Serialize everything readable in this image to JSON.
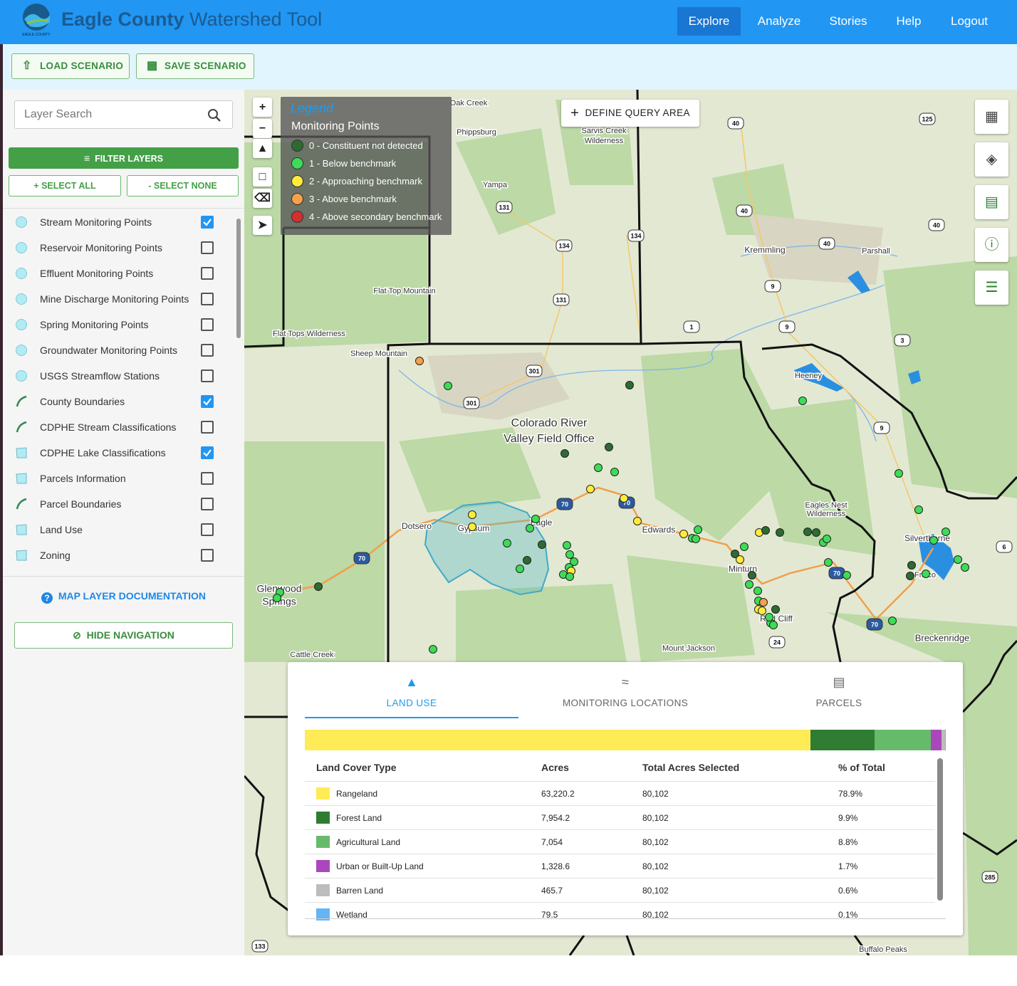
{
  "header": {
    "title_bold": "Eagle County",
    "title_rest": "Watershed Tool",
    "logo_text": "EAGLE COUNTY",
    "nav": [
      "Explore",
      "Analyze",
      "Stories",
      "Help",
      "Logout"
    ],
    "active_nav": 0
  },
  "toolbar": {
    "buttons": [
      "LOAD SCENARIO",
      "SAVE SCENARIO"
    ]
  },
  "sidebar": {
    "search_placeholder": "Layer Search",
    "filter_button": "FILTER LAYERS",
    "select_all": "+ SELECT ALL",
    "select_none": "- SELECT NONE",
    "layers": [
      {
        "name": "Stream Monitoring Points",
        "icon": "point",
        "checked": true
      },
      {
        "name": "Reservoir Monitoring Points",
        "icon": "point",
        "checked": false
      },
      {
        "name": "Effluent Monitoring Points",
        "icon": "point",
        "checked": false
      },
      {
        "name": "Mine Discharge Monitoring Points",
        "icon": "point",
        "checked": false
      },
      {
        "name": "Spring Monitoring Points",
        "icon": "point",
        "checked": false
      },
      {
        "name": "Groundwater Monitoring Points",
        "icon": "point",
        "checked": false
      },
      {
        "name": "USGS Streamflow Stations",
        "icon": "point",
        "checked": false
      },
      {
        "name": "County Boundaries",
        "icon": "line",
        "checked": true
      },
      {
        "name": "CDPHE Stream Classifications",
        "icon": "line",
        "checked": false
      },
      {
        "name": "CDPHE Lake Classifications",
        "icon": "polygon",
        "checked": true
      },
      {
        "name": "Parcels Information",
        "icon": "polygon",
        "checked": false
      },
      {
        "name": "Parcel Boundaries",
        "icon": "line",
        "checked": false
      },
      {
        "name": "Land Use",
        "icon": "polygon",
        "checked": false
      },
      {
        "name": "Zoning",
        "icon": "polygon",
        "checked": false
      }
    ],
    "doc_link": "MAP LAYER DOCUMENTATION",
    "hide_nav": "HIDE NAVIGATION"
  },
  "map": {
    "legend": {
      "title": "Legend",
      "subtitle": "Monitoring Points",
      "items": [
        {
          "label": "0 - Constituent not detected",
          "color": "#2e6b32"
        },
        {
          "label": "1 - Below benchmark",
          "color": "#3ddc57"
        },
        {
          "label": "2 - Approaching benchmark",
          "color": "#ffeb3b"
        },
        {
          "label": "3 - Above benchmark",
          "color": "#f5a04a"
        },
        {
          "label": "4 - Above secondary benchmark",
          "color": "#d32f2f"
        }
      ]
    },
    "query_button": "DEFINE QUERY AREA",
    "places": [
      "Oak Creek",
      "Phippsburg",
      "Sarvis Creek",
      "Wilderness",
      "Yampa",
      "Kremmling",
      "Parshall",
      "Flat Top Mountain",
      "Flat Tops Wilderness",
      "Sheep Mountain",
      "Colorado River",
      "Valley Field Office",
      "Dotsero",
      "Gypsum",
      "Eagle",
      "Edwards",
      "Minturn",
      "Silverthorne",
      "Glenwood",
      "Springs",
      "Cattle Creek",
      "Mount Jackson",
      "Red Cliff",
      "Breckenridge",
      "Eagles Nest",
      "Wilderness",
      "Heeney",
      "Frisco",
      "Buffalo Peaks"
    ],
    "shields": [
      "40",
      "125",
      "40",
      "40",
      "131",
      "134",
      "134",
      "131",
      "40",
      "9",
      "9",
      "1",
      "3",
      "301",
      "301",
      "9",
      "70",
      "70",
      "70",
      "70",
      "70",
      "24",
      "6",
      "285",
      "133"
    ]
  },
  "panel": {
    "tabs": [
      "LAND USE",
      "MONITORING LOCATIONS",
      "PARCELS"
    ],
    "active_tab": 0,
    "columns": [
      "Land Cover Type",
      "Acres",
      "Total Acres Selected",
      "% of Total"
    ],
    "rows": [
      {
        "color": "#ffeb55",
        "cells": [
          "Rangeland",
          "63,220.2",
          "80,102",
          "78.9%"
        ]
      },
      {
        "color": "#2e7d32",
        "cells": [
          "Forest Land",
          "7,954.2",
          "80,102",
          "9.9%"
        ]
      },
      {
        "color": "#66bb6a",
        "cells": [
          "Agricultural Land",
          "7,054",
          "80,102",
          "8.8%"
        ]
      },
      {
        "color": "#ab47bc",
        "cells": [
          "Urban or Built-Up Land",
          "1,328.6",
          "80,102",
          "1.7%"
        ]
      },
      {
        "color": "#bdbdbd",
        "cells": [
          "Barren Land",
          "465.7",
          "80,102",
          "0.6%"
        ]
      },
      {
        "color": "#64b5f6",
        "cells": [
          "Wetland",
          "79.5",
          "80,102",
          "0.1%"
        ]
      }
    ]
  }
}
